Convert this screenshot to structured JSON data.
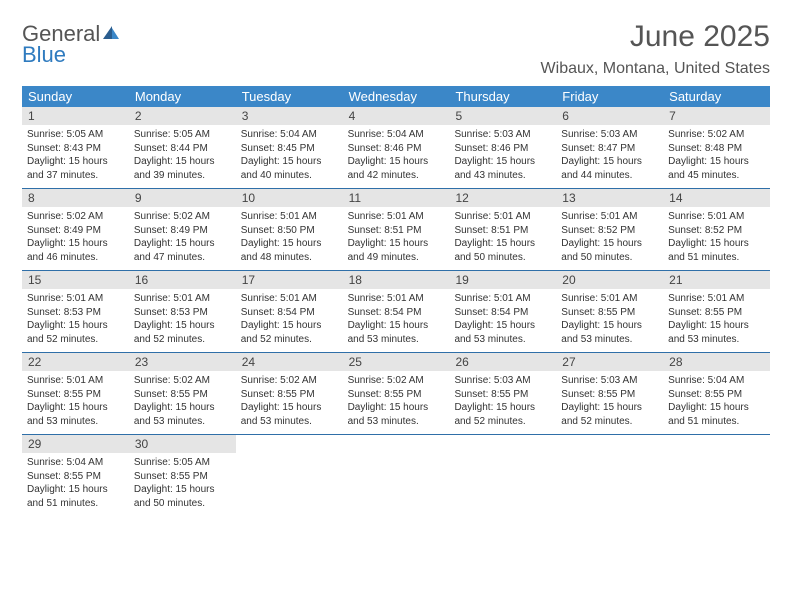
{
  "brand": {
    "general": "General",
    "blue": "Blue"
  },
  "title": "June 2025",
  "location": "Wibaux, Montana, United States",
  "header_bg": "#3b87c8",
  "daynum_bg": "#e5e5e5",
  "divider_color": "#2f6fa8",
  "weekdays": [
    "Sunday",
    "Monday",
    "Tuesday",
    "Wednesday",
    "Thursday",
    "Friday",
    "Saturday"
  ],
  "weeks": [
    [
      {
        "n": "1",
        "sr": "Sunrise: 5:05 AM",
        "ss": "Sunset: 8:43 PM",
        "dl": "Daylight: 15 hours and 37 minutes."
      },
      {
        "n": "2",
        "sr": "Sunrise: 5:05 AM",
        "ss": "Sunset: 8:44 PM",
        "dl": "Daylight: 15 hours and 39 minutes."
      },
      {
        "n": "3",
        "sr": "Sunrise: 5:04 AM",
        "ss": "Sunset: 8:45 PM",
        "dl": "Daylight: 15 hours and 40 minutes."
      },
      {
        "n": "4",
        "sr": "Sunrise: 5:04 AM",
        "ss": "Sunset: 8:46 PM",
        "dl": "Daylight: 15 hours and 42 minutes."
      },
      {
        "n": "5",
        "sr": "Sunrise: 5:03 AM",
        "ss": "Sunset: 8:46 PM",
        "dl": "Daylight: 15 hours and 43 minutes."
      },
      {
        "n": "6",
        "sr": "Sunrise: 5:03 AM",
        "ss": "Sunset: 8:47 PM",
        "dl": "Daylight: 15 hours and 44 minutes."
      },
      {
        "n": "7",
        "sr": "Sunrise: 5:02 AM",
        "ss": "Sunset: 8:48 PM",
        "dl": "Daylight: 15 hours and 45 minutes."
      }
    ],
    [
      {
        "n": "8",
        "sr": "Sunrise: 5:02 AM",
        "ss": "Sunset: 8:49 PM",
        "dl": "Daylight: 15 hours and 46 minutes."
      },
      {
        "n": "9",
        "sr": "Sunrise: 5:02 AM",
        "ss": "Sunset: 8:49 PM",
        "dl": "Daylight: 15 hours and 47 minutes."
      },
      {
        "n": "10",
        "sr": "Sunrise: 5:01 AM",
        "ss": "Sunset: 8:50 PM",
        "dl": "Daylight: 15 hours and 48 minutes."
      },
      {
        "n": "11",
        "sr": "Sunrise: 5:01 AM",
        "ss": "Sunset: 8:51 PM",
        "dl": "Daylight: 15 hours and 49 minutes."
      },
      {
        "n": "12",
        "sr": "Sunrise: 5:01 AM",
        "ss": "Sunset: 8:51 PM",
        "dl": "Daylight: 15 hours and 50 minutes."
      },
      {
        "n": "13",
        "sr": "Sunrise: 5:01 AM",
        "ss": "Sunset: 8:52 PM",
        "dl": "Daylight: 15 hours and 50 minutes."
      },
      {
        "n": "14",
        "sr": "Sunrise: 5:01 AM",
        "ss": "Sunset: 8:52 PM",
        "dl": "Daylight: 15 hours and 51 minutes."
      }
    ],
    [
      {
        "n": "15",
        "sr": "Sunrise: 5:01 AM",
        "ss": "Sunset: 8:53 PM",
        "dl": "Daylight: 15 hours and 52 minutes."
      },
      {
        "n": "16",
        "sr": "Sunrise: 5:01 AM",
        "ss": "Sunset: 8:53 PM",
        "dl": "Daylight: 15 hours and 52 minutes."
      },
      {
        "n": "17",
        "sr": "Sunrise: 5:01 AM",
        "ss": "Sunset: 8:54 PM",
        "dl": "Daylight: 15 hours and 52 minutes."
      },
      {
        "n": "18",
        "sr": "Sunrise: 5:01 AM",
        "ss": "Sunset: 8:54 PM",
        "dl": "Daylight: 15 hours and 53 minutes."
      },
      {
        "n": "19",
        "sr": "Sunrise: 5:01 AM",
        "ss": "Sunset: 8:54 PM",
        "dl": "Daylight: 15 hours and 53 minutes."
      },
      {
        "n": "20",
        "sr": "Sunrise: 5:01 AM",
        "ss": "Sunset: 8:55 PM",
        "dl": "Daylight: 15 hours and 53 minutes."
      },
      {
        "n": "21",
        "sr": "Sunrise: 5:01 AM",
        "ss": "Sunset: 8:55 PM",
        "dl": "Daylight: 15 hours and 53 minutes."
      }
    ],
    [
      {
        "n": "22",
        "sr": "Sunrise: 5:01 AM",
        "ss": "Sunset: 8:55 PM",
        "dl": "Daylight: 15 hours and 53 minutes."
      },
      {
        "n": "23",
        "sr": "Sunrise: 5:02 AM",
        "ss": "Sunset: 8:55 PM",
        "dl": "Daylight: 15 hours and 53 minutes."
      },
      {
        "n": "24",
        "sr": "Sunrise: 5:02 AM",
        "ss": "Sunset: 8:55 PM",
        "dl": "Daylight: 15 hours and 53 minutes."
      },
      {
        "n": "25",
        "sr": "Sunrise: 5:02 AM",
        "ss": "Sunset: 8:55 PM",
        "dl": "Daylight: 15 hours and 53 minutes."
      },
      {
        "n": "26",
        "sr": "Sunrise: 5:03 AM",
        "ss": "Sunset: 8:55 PM",
        "dl": "Daylight: 15 hours and 52 minutes."
      },
      {
        "n": "27",
        "sr": "Sunrise: 5:03 AM",
        "ss": "Sunset: 8:55 PM",
        "dl": "Daylight: 15 hours and 52 minutes."
      },
      {
        "n": "28",
        "sr": "Sunrise: 5:04 AM",
        "ss": "Sunset: 8:55 PM",
        "dl": "Daylight: 15 hours and 51 minutes."
      }
    ],
    [
      {
        "n": "29",
        "sr": "Sunrise: 5:04 AM",
        "ss": "Sunset: 8:55 PM",
        "dl": "Daylight: 15 hours and 51 minutes."
      },
      {
        "n": "30",
        "sr": "Sunrise: 5:05 AM",
        "ss": "Sunset: 8:55 PM",
        "dl": "Daylight: 15 hours and 50 minutes."
      },
      null,
      null,
      null,
      null,
      null
    ]
  ]
}
